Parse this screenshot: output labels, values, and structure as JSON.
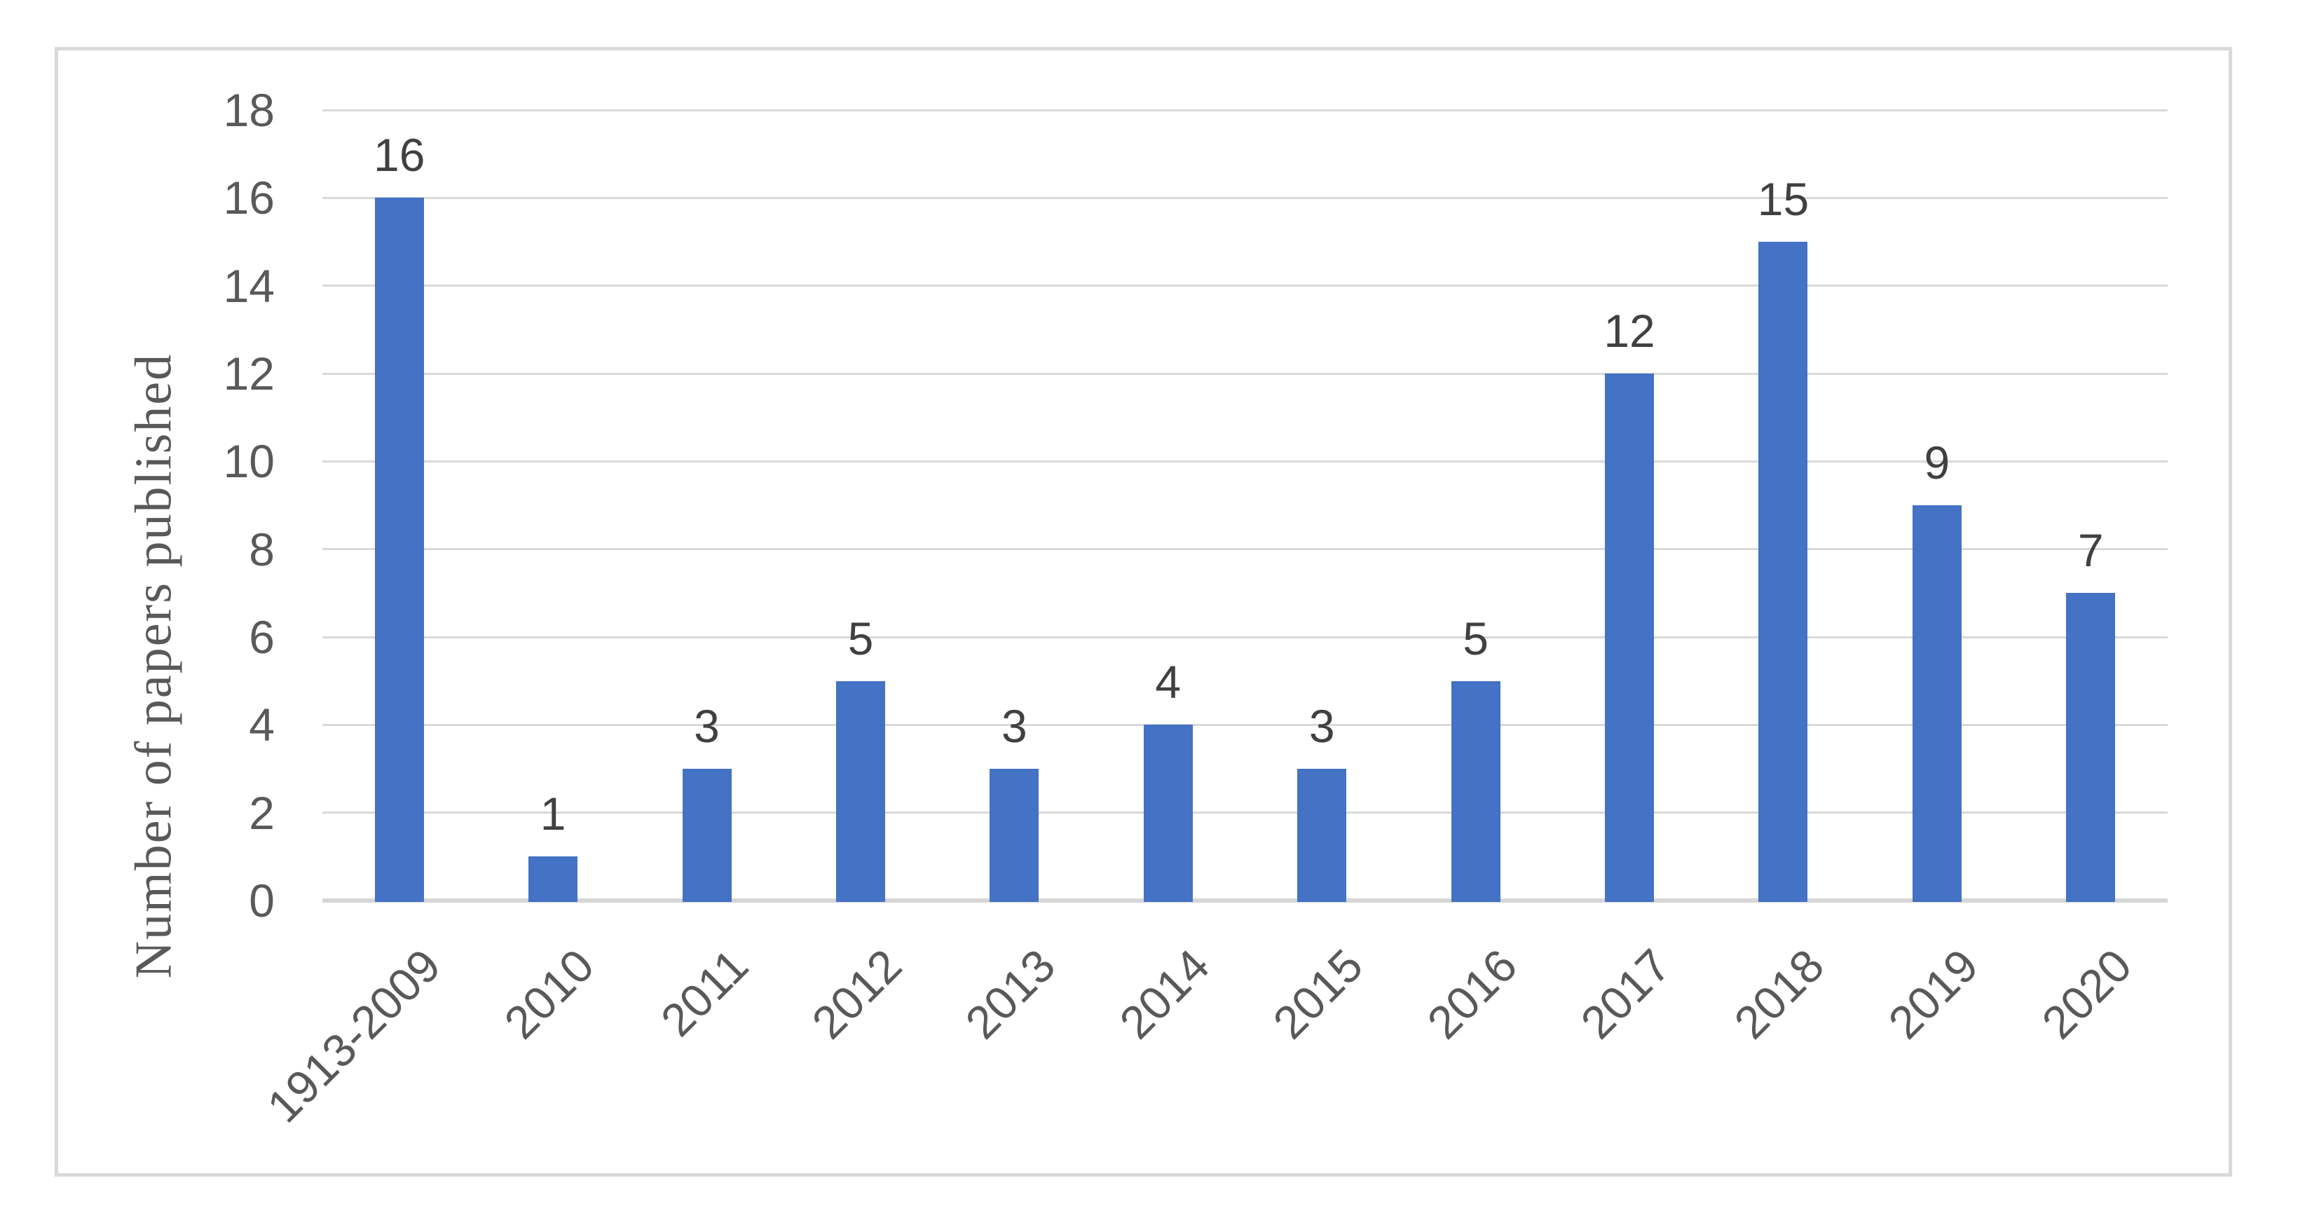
{
  "chart_data": {
    "type": "bar",
    "title": "",
    "xlabel": "",
    "ylabel": "Number of papers published",
    "categories": [
      "1913-2009",
      "2010",
      "2011",
      "2012",
      "2013",
      "2014",
      "2015",
      "2016",
      "2017",
      "2018",
      "2019",
      "2020"
    ],
    "values": [
      16,
      1,
      3,
      5,
      3,
      4,
      3,
      5,
      12,
      15,
      9,
      7
    ],
    "data_labels": [
      "16",
      "1",
      "3",
      "5",
      "3",
      "4",
      "3",
      "5",
      "12",
      "15",
      "9",
      "7"
    ],
    "ylim": [
      0,
      18
    ],
    "yticks": [
      0,
      2,
      4,
      6,
      8,
      10,
      12,
      14,
      16,
      18
    ],
    "grid": "horizontal",
    "legend": "none",
    "colors": {
      "bar": "#4472C4",
      "gridline": "#D9D9D9",
      "axis_line": "#D6D6D6",
      "frame_border": "#D9D9D9",
      "tick_label": "#595959",
      "category_label": "#595959",
      "data_label": "#404040",
      "axis_title": "#595959",
      "background": "#FFFFFF"
    }
  }
}
